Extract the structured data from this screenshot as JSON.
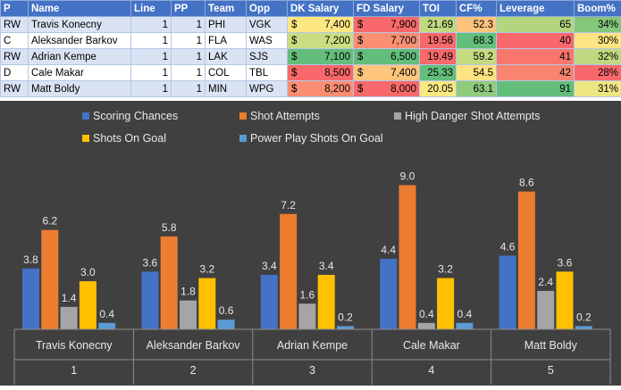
{
  "table": {
    "headers": [
      "P",
      "Name",
      "Line",
      "PP",
      "Team",
      "Opp",
      "DK Salary",
      "FD Salary",
      "TOI",
      "CF%",
      "Leverage",
      "Boom%"
    ],
    "rows": [
      {
        "p": "RW",
        "name": "Travis Konecny",
        "line": "1",
        "pp": "1",
        "team": "PHI",
        "opp": "VGK",
        "dk": "7,400",
        "fd": "7,900",
        "toi": "21.69",
        "cf": "52.3",
        "lev": "65",
        "boom": "34%",
        "colors": {
          "dk": "#fee783",
          "fd": "#f8696b",
          "toi": "#c1da81",
          "cf": "#fdc47d",
          "lev": "#b3d580",
          "boom": "#84c77c"
        }
      },
      {
        "p": "C",
        "name": "Aleksander Barkov",
        "line": "1",
        "pp": "1",
        "team": "FLA",
        "opp": "WAS",
        "dk": "7,200",
        "fd": "7,700",
        "toi": "19.56",
        "cf": "68.3",
        "lev": "40",
        "boom": "30%",
        "colors": {
          "dk": "#cbdd82",
          "fd": "#fa8f72",
          "toi": "#f8696b",
          "cf": "#63be7b",
          "lev": "#f8696b",
          "boom": "#fee483"
        }
      },
      {
        "p": "RW",
        "name": "Adrian Kempe",
        "line": "1",
        "pp": "1",
        "team": "LAK",
        "opp": "SJS",
        "dk": "7,100",
        "fd": "6,500",
        "toi": "19.49",
        "cf": "59.2",
        "lev": "41",
        "boom": "32%",
        "colors": {
          "dk": "#63be7b",
          "fd": "#63be7b",
          "toi": "#f8696b",
          "cf": "#c4db81",
          "lev": "#f8766d",
          "boom": "#c0d980"
        }
      },
      {
        "p": "D",
        "name": "Cale Makar",
        "line": "1",
        "pp": "1",
        "team": "COL",
        "opp": "TBL",
        "dk": "8,500",
        "fd": "7,400",
        "toi": "25.33",
        "cf": "54.5",
        "lev": "42",
        "boom": "28%",
        "colors": {
          "dk": "#f8696b",
          "fd": "#fec57d",
          "toi": "#63be7b",
          "cf": "#fee382",
          "lev": "#f98470",
          "boom": "#f8696b"
        }
      },
      {
        "p": "RW",
        "name": "Matt Boldy",
        "line": "1",
        "pp": "1",
        "team": "MIN",
        "opp": "WPG",
        "dk": "8,200",
        "fd": "8,000",
        "toi": "20.05",
        "cf": "63.1",
        "lev": "91",
        "boom": "31%",
        "colors": {
          "dk": "#fa8e72",
          "fd": "#f8696b",
          "toi": "#f8e983",
          "cf": "#90ca7d",
          "lev": "#63be7b",
          "boom": "#eee683"
        }
      }
    ],
    "currency": "$"
  },
  "chart_data": {
    "type": "bar",
    "categories": [
      {
        "name": "Travis Konecny",
        "index": "1"
      },
      {
        "name": "Aleksander Barkov",
        "index": "2"
      },
      {
        "name": "Adrian Kempe",
        "index": "3"
      },
      {
        "name": "Cale Makar",
        "index": "4"
      },
      {
        "name": "Matt Boldy",
        "index": "5"
      }
    ],
    "series": [
      {
        "name": "Scoring Chances",
        "color": "#4472c4",
        "values": [
          3.8,
          3.6,
          3.4,
          4.4,
          4.6
        ]
      },
      {
        "name": "Shot Attempts",
        "color": "#ed7d31",
        "values": [
          6.2,
          5.8,
          7.2,
          9.0,
          8.6
        ]
      },
      {
        "name": "High Danger Shot Attempts",
        "color": "#a5a5a5",
        "values": [
          1.4,
          1.8,
          1.6,
          0.4,
          2.4
        ]
      },
      {
        "name": "Shots On Goal",
        "color": "#ffc000",
        "values": [
          3.0,
          3.2,
          3.4,
          3.2,
          3.6
        ]
      },
      {
        "name": "Power Play Shots On Goal",
        "color": "#5b9bd5",
        "values": [
          0.4,
          0.6,
          0.2,
          0.4,
          0.2
        ]
      }
    ],
    "ylim": [
      0,
      10
    ],
    "grid": false,
    "legend": "top",
    "data_labels": true,
    "background": "#404040"
  }
}
